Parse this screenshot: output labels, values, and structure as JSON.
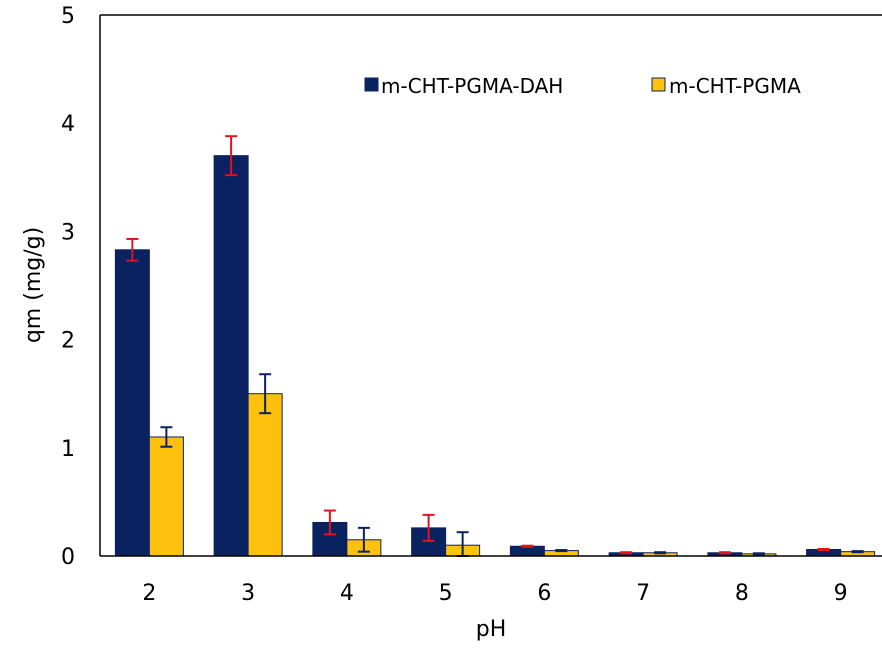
{
  "chart_data": {
    "type": "bar",
    "xlabel": "pH",
    "ylabel": "qm (mg/g)",
    "categories": [
      "2",
      "3",
      "4",
      "5",
      "6",
      "7",
      "8",
      "9"
    ],
    "ylim": [
      0,
      5
    ],
    "yticks": [
      "0",
      "1",
      "2",
      "3",
      "4",
      "5"
    ],
    "grid": false,
    "legend_position": "top-right",
    "series": [
      {
        "name": "m-CHT-PGMA-DAH",
        "color": "#0b2260",
        "error_color": "#e0141e",
        "values": [
          2.83,
          3.7,
          0.31,
          0.26,
          0.09,
          0.03,
          0.03,
          0.06
        ],
        "errors": [
          0.1,
          0.18,
          0.11,
          0.12,
          0.005,
          0.005,
          0.005,
          0.005
        ]
      },
      {
        "name": "m-CHT-PGMA",
        "color": "#fdc10e",
        "error_color": "#0b2260",
        "values": [
          1.1,
          1.5,
          0.15,
          0.1,
          0.05,
          0.03,
          0.02,
          0.04
        ],
        "errors": [
          0.09,
          0.18,
          0.11,
          0.12,
          0.005,
          0.005,
          0.005,
          0.005
        ]
      }
    ]
  }
}
